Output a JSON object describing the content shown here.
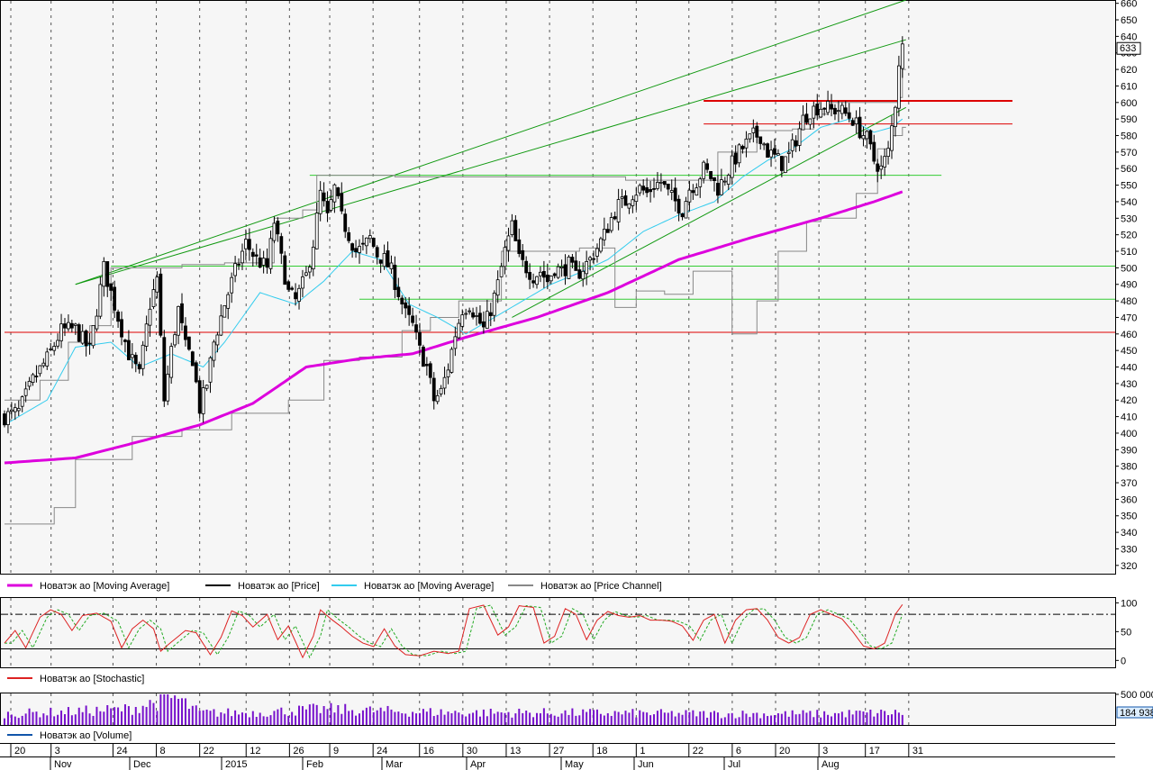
{
  "colors": {
    "panel_bg": "#f6f6f6",
    "grid": "#555555",
    "long_ma": "#dd00dd",
    "short_ma": "#33ccee",
    "price": "#000000",
    "channel": "#888888",
    "trend": "#119911",
    "support_green": "#33cc33",
    "resistance_red": "#dd0000",
    "stoch_k": "#dd2222",
    "stoch_d": "#22aa22",
    "volume": "#7711cc"
  },
  "legend": [
    {
      "label": "Новатэк ао [Moving Average]",
      "color": "#dd00dd"
    },
    {
      "label": "Новатэк ао [Price]",
      "color": "#000000"
    },
    {
      "label": "Новатэк ао [Moving Average]",
      "color": "#33ccee"
    },
    {
      "label": "Новатэк ао [Price Channel]",
      "color": "#888888"
    }
  ],
  "stoch_legend": {
    "label": "Новатэк ао [Stochastic]",
    "color": "#dd2222"
  },
  "volume_legend": {
    "label": "Новатэк ао [Volume]",
    "color": "#1155aa"
  },
  "chart_data": [
    {
      "type": "candlestick",
      "panel": "price",
      "ylim": [
        315,
        662
      ],
      "y_ticks": [
        320,
        330,
        340,
        350,
        360,
        370,
        380,
        390,
        400,
        410,
        420,
        430,
        440,
        450,
        460,
        470,
        480,
        490,
        500,
        510,
        520,
        530,
        540,
        550,
        560,
        570,
        580,
        590,
        600,
        610,
        620,
        630,
        640,
        650,
        660
      ],
      "last_price_label": "633",
      "x_labels": [
        "20",
        "3",
        "24",
        "8",
        "22",
        "12",
        "26",
        "9",
        "24",
        "16",
        "30",
        "13",
        "27",
        "18",
        "1",
        "22",
        "6",
        "20",
        "3",
        "17",
        "31"
      ],
      "month_labels": [
        "Nov",
        "Dec",
        "2015",
        "Feb",
        "Mar",
        "Apr",
        "May",
        "Jun",
        "Jul",
        "Aug"
      ],
      "anchors_price": [
        [
          0,
          410
        ],
        [
          4,
          413
        ],
        [
          8,
          432
        ],
        [
          12,
          445
        ],
        [
          16,
          462
        ],
        [
          20,
          463
        ],
        [
          24,
          450
        ],
        [
          28,
          500
        ],
        [
          32,
          470
        ],
        [
          35,
          448
        ],
        [
          38,
          435
        ],
        [
          41,
          478
        ],
        [
          43,
          493
        ],
        [
          45,
          420
        ],
        [
          47,
          450
        ],
        [
          49,
          475
        ],
        [
          51,
          452
        ],
        [
          53,
          445
        ],
        [
          55,
          415
        ],
        [
          57,
          430
        ],
        [
          59,
          455
        ],
        [
          62,
          478
        ],
        [
          65,
          498
        ],
        [
          68,
          515
        ],
        [
          71,
          505
        ],
        [
          74,
          500
        ],
        [
          76,
          528
        ],
        [
          78,
          505
        ],
        [
          80,
          485
        ],
        [
          82,
          480
        ],
        [
          85,
          495
        ],
        [
          87,
          515
        ],
        [
          89,
          545
        ],
        [
          91,
          530
        ],
        [
          93,
          548
        ],
        [
          95,
          530
        ],
        [
          97,
          520
        ],
        [
          99,
          510
        ],
        [
          101,
          512
        ],
        [
          103,
          518
        ],
        [
          105,
          508
        ],
        [
          107,
          505
        ],
        [
          109,
          498
        ],
        [
          111,
          485
        ],
        [
          113,
          472
        ],
        [
          115,
          465
        ],
        [
          117,
          450
        ],
        [
          119,
          440
        ],
        [
          121,
          420
        ],
        [
          123,
          425
        ],
        [
          125,
          440
        ],
        [
          127,
          460
        ],
        [
          129,
          475
        ],
        [
          131,
          478
        ],
        [
          133,
          470
        ],
        [
          135,
          463
        ],
        [
          137,
          475
        ],
        [
          139,
          490
        ],
        [
          141,
          510
        ],
        [
          143,
          525
        ],
        [
          145,
          505
        ],
        [
          147,
          500
        ],
        [
          149,
          495
        ],
        [
          151,
          498
        ],
        [
          153,
          492
        ],
        [
          155,
          500
        ],
        [
          157,
          498
        ],
        [
          159,
          502
        ],
        [
          161,
          495
        ],
        [
          163,
          500
        ],
        [
          165,
          505
        ],
        [
          167,
          512
        ],
        [
          169,
          520
        ],
        [
          171,
          530
        ],
        [
          173,
          538
        ],
        [
          175,
          540
        ],
        [
          177,
          545
        ],
        [
          179,
          548
        ],
        [
          181,
          545
        ],
        [
          183,
          550
        ],
        [
          185,
          552
        ],
        [
          187,
          545
        ],
        [
          189,
          540
        ],
        [
          191,
          535
        ],
        [
          193,
          548
        ],
        [
          195,
          552
        ],
        [
          197,
          560
        ],
        [
          199,
          555
        ],
        [
          201,
          548
        ],
        [
          203,
          555
        ],
        [
          205,
          563
        ],
        [
          207,
          570
        ],
        [
          209,
          575
        ],
        [
          211,
          580
        ],
        [
          213,
          580
        ],
        [
          215,
          570
        ],
        [
          217,
          567
        ],
        [
          219,
          563
        ],
        [
          221,
          568
        ],
        [
          223,
          578
        ],
        [
          225,
          590
        ],
        [
          227,
          595
        ],
        [
          229,
          597
        ],
        [
          231,
          598
        ],
        [
          233,
          595
        ],
        [
          235,
          596
        ],
        [
          237,
          593
        ],
        [
          239,
          590
        ],
        [
          241,
          583
        ],
        [
          243,
          578
        ],
        [
          245,
          565
        ],
        [
          247,
          560
        ],
        [
          249,
          570
        ],
        [
          251,
          600
        ],
        [
          252,
          625
        ],
        [
          253,
          633
        ]
      ],
      "long_ma": [
        [
          0,
          382
        ],
        [
          20,
          385
        ],
        [
          40,
          396
        ],
        [
          55,
          405
        ],
        [
          70,
          418
        ],
        [
          85,
          440
        ],
        [
          100,
          445
        ],
        [
          115,
          448
        ],
        [
          130,
          458
        ],
        [
          150,
          470
        ],
        [
          170,
          485
        ],
        [
          190,
          505
        ],
        [
          210,
          518
        ],
        [
          230,
          530
        ],
        [
          245,
          540
        ],
        [
          253,
          546
        ]
      ],
      "short_ma": [
        [
          0,
          405
        ],
        [
          12,
          420
        ],
        [
          20,
          452
        ],
        [
          30,
          455
        ],
        [
          38,
          440
        ],
        [
          47,
          448
        ],
        [
          56,
          440
        ],
        [
          62,
          455
        ],
        [
          72,
          485
        ],
        [
          82,
          478
        ],
        [
          90,
          492
        ],
        [
          98,
          510
        ],
        [
          106,
          505
        ],
        [
          114,
          478
        ],
        [
          122,
          470
        ],
        [
          130,
          460
        ],
        [
          138,
          470
        ],
        [
          146,
          480
        ],
        [
          154,
          490
        ],
        [
          162,
          497
        ],
        [
          170,
          505
        ],
        [
          180,
          522
        ],
        [
          190,
          532
        ],
        [
          200,
          540
        ],
        [
          208,
          555
        ],
        [
          215,
          565
        ],
        [
          222,
          572
        ],
        [
          230,
          585
        ],
        [
          238,
          590
        ],
        [
          245,
          582
        ],
        [
          250,
          585
        ],
        [
          253,
          590
        ]
      ],
      "channel_upper": [
        [
          0,
          420
        ],
        [
          10,
          432
        ],
        [
          18,
          455
        ],
        [
          24,
          465
        ],
        [
          30,
          500
        ],
        [
          40,
          500
        ],
        [
          50,
          502
        ],
        [
          62,
          503
        ],
        [
          70,
          503
        ],
        [
          76,
          530
        ],
        [
          84,
          535
        ],
        [
          88,
          556
        ],
        [
          100,
          556
        ],
        [
          110,
          555
        ],
        [
          140,
          555
        ],
        [
          165,
          555
        ],
        [
          175,
          553
        ],
        [
          195,
          553
        ],
        [
          201,
          570
        ],
        [
          212,
          583
        ],
        [
          222,
          584
        ],
        [
          228,
          593
        ],
        [
          232,
          600
        ],
        [
          252,
          603
        ],
        [
          253,
          620
        ]
      ],
      "channel_lower": [
        [
          0,
          345
        ],
        [
          14,
          355
        ],
        [
          20,
          384
        ],
        [
          36,
          398
        ],
        [
          50,
          402
        ],
        [
          64,
          412
        ],
        [
          80,
          420
        ],
        [
          90,
          444
        ],
        [
          100,
          446
        ],
        [
          112,
          462
        ],
        [
          120,
          470
        ],
        [
          128,
          480
        ],
        [
          140,
          510
        ],
        [
          162,
          512
        ],
        [
          172,
          476
        ],
        [
          178,
          486
        ],
        [
          186,
          484
        ],
        [
          194,
          498
        ],
        [
          200,
          498
        ],
        [
          205,
          460
        ],
        [
          212,
          480
        ],
        [
          218,
          510
        ],
        [
          226,
          528
        ],
        [
          230,
          530
        ],
        [
          240,
          545
        ],
        [
          246,
          572
        ],
        [
          250,
          580
        ],
        [
          253,
          585
        ]
      ],
      "trend_lines": [
        {
          "from": [
            20,
            490
          ],
          "to": [
            254,
            638
          ]
        },
        {
          "from": [
            20,
            490
          ],
          "to": [
            254,
            662
          ]
        },
        {
          "from": [
            143,
            470
          ],
          "to": [
            254,
            597
          ]
        }
      ],
      "support_lines": [
        {
          "from": [
            86,
            556
          ],
          "to": [
            264,
            556
          ],
          "color": "support_green"
        },
        {
          "from": [
            30,
            501
          ],
          "to": [
            315,
            501
          ],
          "color": "support_green"
        },
        {
          "from": [
            100,
            481
          ],
          "to": [
            315,
            481
          ],
          "color": "support_green"
        },
        {
          "from": [
            0,
            461
          ],
          "to": [
            315,
            461
          ],
          "color": "resistance_red"
        },
        {
          "from": [
            197,
            601
          ],
          "to": [
            284,
            601
          ],
          "color": "resistance_red",
          "width": 2
        },
        {
          "from": [
            197,
            587
          ],
          "to": [
            284,
            587
          ],
          "color": "resistance_red"
        }
      ]
    },
    {
      "type": "line",
      "panel": "stochastic",
      "ylim": [
        -12,
        110
      ],
      "y_ticks": [
        0,
        50,
        100
      ],
      "levels": [
        20,
        80
      ],
      "k_anchors": [
        [
          0,
          30
        ],
        [
          3,
          52
        ],
        [
          6,
          22
        ],
        [
          10,
          75
        ],
        [
          13,
          88
        ],
        [
          16,
          80
        ],
        [
          19,
          52
        ],
        [
          22,
          78
        ],
        [
          26,
          82
        ],
        [
          30,
          68
        ],
        [
          33,
          22
        ],
        [
          36,
          55
        ],
        [
          39,
          70
        ],
        [
          42,
          55
        ],
        [
          44,
          16
        ],
        [
          47,
          32
        ],
        [
          51,
          52
        ],
        [
          54,
          48
        ],
        [
          58,
          10
        ],
        [
          61,
          40
        ],
        [
          64,
          86
        ],
        [
          67,
          78
        ],
        [
          70,
          58
        ],
        [
          74,
          80
        ],
        [
          77,
          36
        ],
        [
          80,
          60
        ],
        [
          84,
          5
        ],
        [
          87,
          42
        ],
        [
          89,
          88
        ],
        [
          92,
          72
        ],
        [
          95,
          58
        ],
        [
          98,
          42
        ],
        [
          101,
          30
        ],
        [
          104,
          24
        ],
        [
          107,
          55
        ],
        [
          110,
          25
        ],
        [
          113,
          10
        ],
        [
          117,
          8
        ],
        [
          121,
          16
        ],
        [
          125,
          12
        ],
        [
          128,
          16
        ],
        [
          131,
          90
        ],
        [
          135,
          96
        ],
        [
          139,
          44
        ],
        [
          142,
          58
        ],
        [
          145,
          95
        ],
        [
          149,
          92
        ],
        [
          152,
          30
        ],
        [
          155,
          42
        ],
        [
          158,
          90
        ],
        [
          161,
          80
        ],
        [
          164,
          36
        ],
        [
          167,
          70
        ],
        [
          170,
          85
        ],
        [
          173,
          78
        ],
        [
          176,
          75
        ],
        [
          179,
          78
        ],
        [
          182,
          70
        ],
        [
          185,
          70
        ],
        [
          188,
          68
        ],
        [
          191,
          60
        ],
        [
          194,
          35
        ],
        [
          197,
          70
        ],
        [
          200,
          80
        ],
        [
          203,
          30
        ],
        [
          206,
          70
        ],
        [
          209,
          88
        ],
        [
          212,
          90
        ],
        [
          215,
          70
        ],
        [
          218,
          40
        ],
        [
          221,
          30
        ],
        [
          224,
          40
        ],
        [
          227,
          80
        ],
        [
          230,
          88
        ],
        [
          233,
          80
        ],
        [
          236,
          72
        ],
        [
          239,
          50
        ],
        [
          242,
          25
        ],
        [
          245,
          20
        ],
        [
          248,
          30
        ],
        [
          251,
          80
        ],
        [
          253,
          97
        ]
      ],
      "d_lag": 2
    },
    {
      "type": "bar",
      "panel": "volume",
      "ylim": [
        0,
        500000
      ],
      "y_ticks": [
        500000
      ],
      "y_tick_labels": [
        "500 000"
      ],
      "last_value_label": "184 938",
      "values_profile": [
        [
          0,
          180000
        ],
        [
          20,
          220000
        ],
        [
          35,
          260000
        ],
        [
          46,
          420000
        ],
        [
          48,
          450000
        ],
        [
          50,
          380000
        ],
        [
          55,
          200000
        ],
        [
          70,
          200000
        ],
        [
          90,
          260000
        ],
        [
          110,
          220000
        ],
        [
          130,
          200000
        ],
        [
          150,
          200000
        ],
        [
          175,
          190000
        ],
        [
          200,
          180000
        ],
        [
          230,
          180000
        ],
        [
          253,
          200000
        ]
      ]
    }
  ]
}
